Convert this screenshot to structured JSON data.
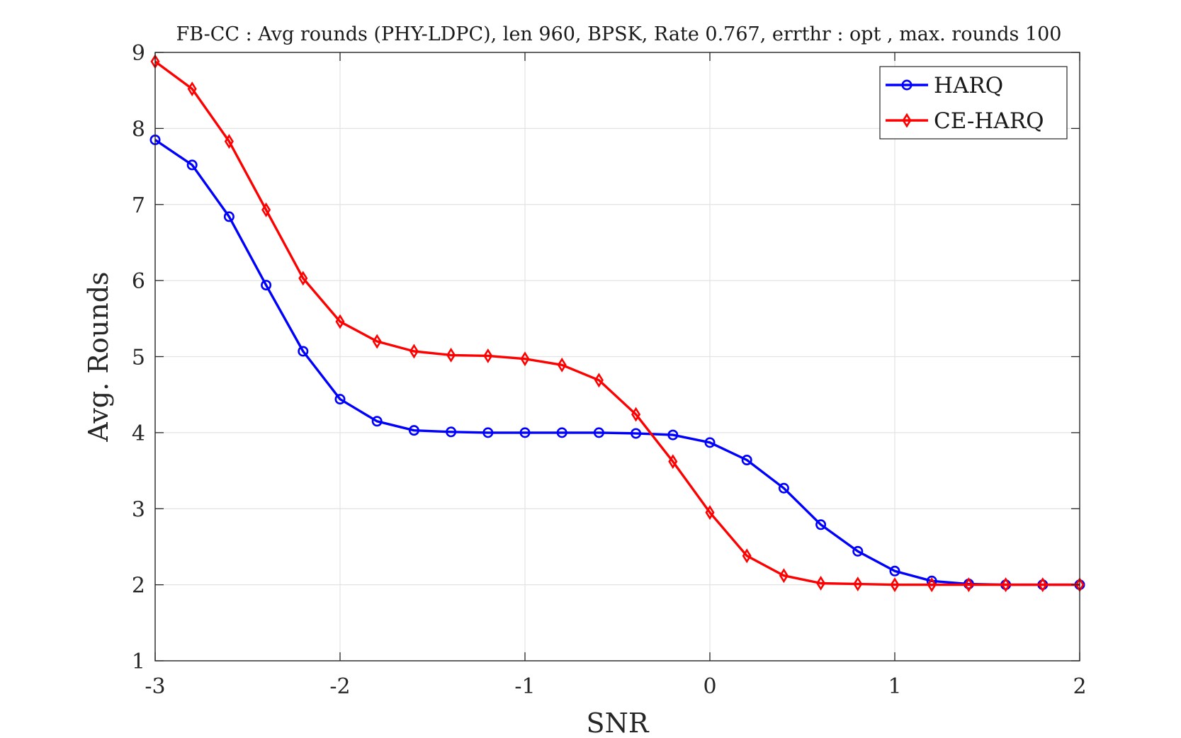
{
  "chart_data": {
    "type": "line",
    "title": "FB-CC : Avg rounds (PHY-LDPC), len 960, BPSK, Rate 0.767, errthr : opt , max. rounds 100",
    "xlabel": "SNR",
    "ylabel": "Avg. Rounds",
    "xlim": [
      -3,
      2
    ],
    "ylim": [
      1,
      9
    ],
    "xticks": [
      -3,
      -2,
      -1,
      0,
      1,
      2
    ],
    "xtick_labels": [
      "-3",
      "-2",
      "-1",
      "0",
      "1",
      "2"
    ],
    "yticks": [
      1,
      2,
      3,
      4,
      5,
      6,
      7,
      8,
      9
    ],
    "ytick_labels": [
      "1",
      "2",
      "3",
      "4",
      "5",
      "6",
      "7",
      "8",
      "9"
    ],
    "grid": true,
    "legend_position": "top-right",
    "x": [
      -3.0,
      -2.8,
      -2.6,
      -2.4,
      -2.2,
      -2.0,
      -1.8,
      -1.6,
      -1.4,
      -1.2,
      -1.0,
      -0.8,
      -0.6,
      -0.4,
      -0.2,
      0.0,
      0.2,
      0.4,
      0.6,
      0.8,
      1.0,
      1.2,
      1.4,
      1.6,
      1.8,
      2.0
    ],
    "series": [
      {
        "name": "HARQ",
        "color": "#0000ff",
        "marker": "circle",
        "values": [
          7.85,
          7.52,
          6.84,
          5.94,
          5.07,
          4.44,
          4.15,
          4.03,
          4.01,
          4.0,
          4.0,
          4.0,
          4.0,
          3.99,
          3.97,
          3.87,
          3.64,
          3.27,
          2.79,
          2.44,
          2.18,
          2.05,
          2.01,
          2.0,
          2.0,
          2.0
        ]
      },
      {
        "name": "CE-HARQ",
        "color": "#ff0000",
        "marker": "diamond",
        "values": [
          8.88,
          8.52,
          7.83,
          6.93,
          6.03,
          5.46,
          5.2,
          5.07,
          5.02,
          5.01,
          4.97,
          4.89,
          4.69,
          4.24,
          3.62,
          2.95,
          2.38,
          2.12,
          2.02,
          2.01,
          2.0,
          2.0,
          2.0,
          2.0,
          2.0,
          2.0
        ]
      }
    ]
  }
}
